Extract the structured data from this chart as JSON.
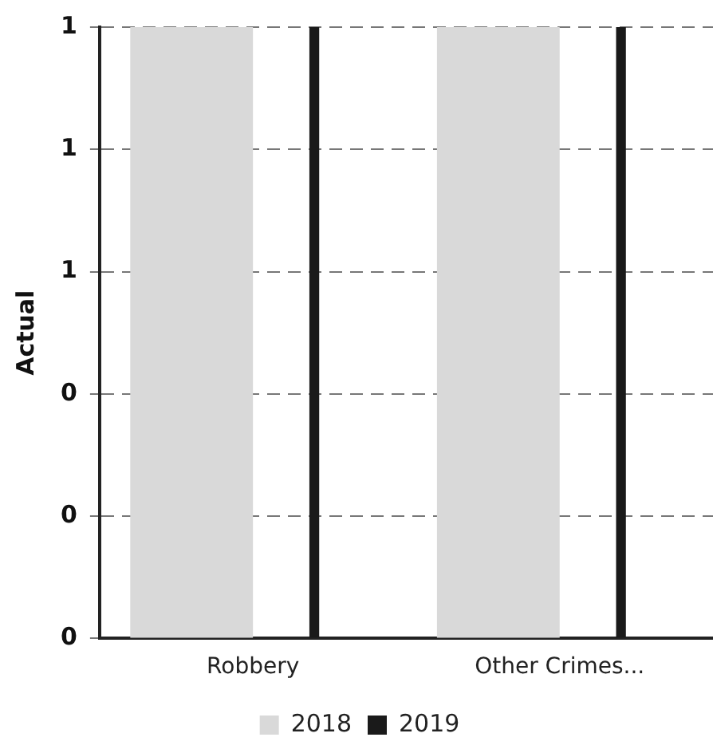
{
  "chart_data": {
    "type": "bar",
    "ylabel": "Actual",
    "categories": [
      "Robbery",
      "Other Crimes..."
    ],
    "series": [
      {
        "name": "2018",
        "color": "#d9d9d9",
        "values": [
          1,
          1
        ]
      },
      {
        "name": "2019",
        "color": "#1a1a1a",
        "values": [
          1,
          1
        ]
      }
    ],
    "ylim": [
      0,
      1
    ],
    "yticks": [
      {
        "value": 0,
        "label": "0"
      },
      {
        "value": 0.2,
        "label": "0"
      },
      {
        "value": 0.4,
        "label": "0"
      },
      {
        "value": 0.6,
        "label": "1"
      },
      {
        "value": 0.8,
        "label": "1"
      },
      {
        "value": 1,
        "label": "1"
      }
    ],
    "grid": "y",
    "legend": "bottom"
  }
}
